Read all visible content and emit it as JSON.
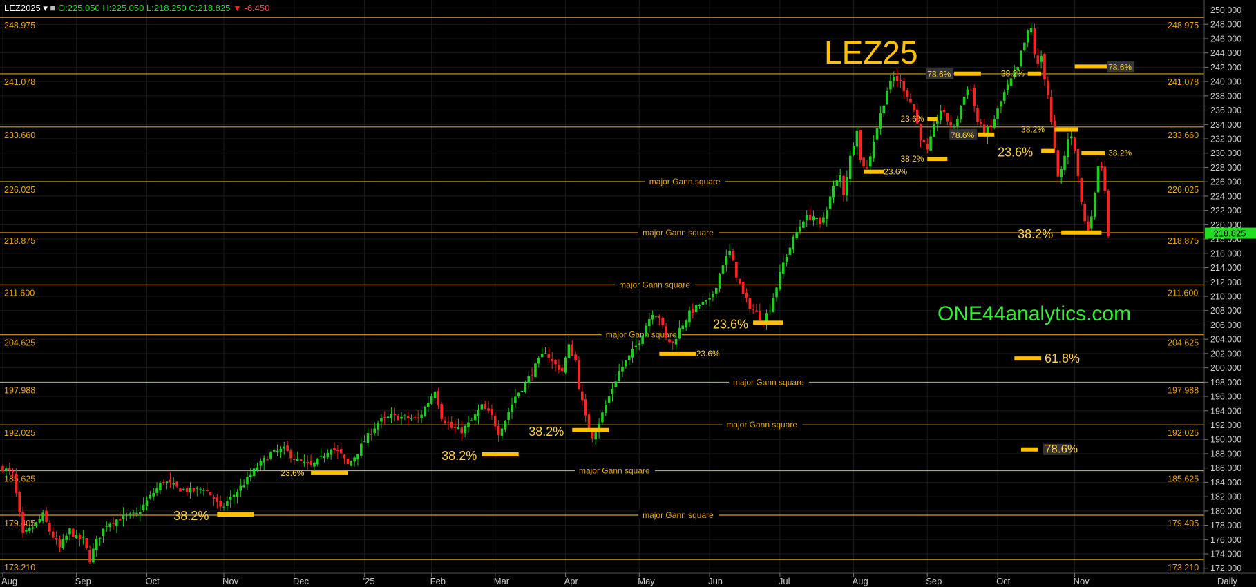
{
  "header": {
    "symbol": "LEZ2025",
    "ohlc": "O:225.050 H:225.050 L:218.250 C:218.825",
    "change": "-6.450",
    "up_color": "#22cc22",
    "down_color": "#ff2222"
  },
  "title": "LEZ25",
  "watermark": "ONE44analytics.com",
  "period_label": "Daily",
  "last_price": "218.825",
  "colors": {
    "background": "#000000",
    "gann": "#d4a017",
    "fib_bar": "#ffc000",
    "text_orange": "#e8a317",
    "text_yellow": "#ffd24a",
    "watermark": "#33ee33",
    "grid": "#1a1a1a",
    "axis_text": "#cccccc"
  },
  "chart_data": {
    "type": "candlestick",
    "ylim": [
      171.3,
      251.4
    ],
    "y_ticks": [
      "172.000",
      "174.000",
      "176.000",
      "178.000",
      "180.000",
      "182.000",
      "184.000",
      "186.000",
      "188.000",
      "190.000",
      "192.000",
      "194.000",
      "196.000",
      "198.000",
      "200.000",
      "202.000",
      "204.000",
      "206.000",
      "208.000",
      "210.000",
      "212.000",
      "214.000",
      "216.000",
      "218.000",
      "220.000",
      "222.000",
      "224.000",
      "226.000",
      "228.000",
      "230.000",
      "232.000",
      "234.000",
      "236.000",
      "238.000",
      "240.000",
      "242.000",
      "244.000",
      "246.000",
      "248.000",
      "250.000"
    ],
    "x_labels": [
      "Aug",
      "Sep",
      "Oct",
      "Nov",
      "Dec",
      "'25",
      "Feb",
      "Mar",
      "Apr",
      "May",
      "Jun",
      "Jul",
      "Aug",
      "Sep",
      "Oct",
      "Nov"
    ],
    "x_label_days": [
      0,
      22,
      43,
      66,
      87,
      108,
      128,
      147,
      168,
      190,
      211,
      232,
      254,
      276,
      297,
      320
    ],
    "x_range_days": [
      0,
      357
    ],
    "gann_levels": [
      {
        "value": 248.975,
        "text": "248.975",
        "label": ""
      },
      {
        "value": 241.078,
        "text": "241.078",
        "label": ""
      },
      {
        "value": 233.66,
        "text": "233.660",
        "label": ""
      },
      {
        "value": 226.025,
        "text": "226.025",
        "label": "major Gann square"
      },
      {
        "value": 218.875,
        "text": "218.875",
        "label": "major Gann square"
      },
      {
        "value": 211.6,
        "text": "211.600",
        "label": "major Gann square"
      },
      {
        "value": 204.625,
        "text": "204.625",
        "label": "major Gann square"
      },
      {
        "value": 197.988,
        "text": "197.988",
        "label": "major Gann square"
      },
      {
        "value": 192.025,
        "text": "192.025",
        "label": "major Gann square"
      },
      {
        "value": 185.625,
        "text": "185.625",
        "label": "major Gann square"
      },
      {
        "value": 179.405,
        "text": "179.405",
        "label": "major Gann square"
      },
      {
        "value": 173.21,
        "text": "173.210",
        "label": ""
      }
    ],
    "gann_label_days": [
      0,
      0,
      0,
      193,
      191,
      184,
      180,
      218,
      216,
      172,
      191,
      0
    ],
    "fib_marks": [
      {
        "d0": 64,
        "d1": 75,
        "y": 179.5,
        "label": "38.2%",
        "ld": 51,
        "lsize": "lg"
      },
      {
        "d0": 92,
        "d1": 103,
        "y": 185.3,
        "label": "23.6%",
        "ld": 83,
        "lsize": "sm"
      },
      {
        "d0": 143,
        "d1": 154,
        "y": 187.9,
        "label": "38.2%",
        "ld": 131,
        "lsize": "lg"
      },
      {
        "d0": 170,
        "d1": 181,
        "y": 191.3,
        "label": "38.2%",
        "ld": 157,
        "lsize": "lg"
      },
      {
        "d0": 196,
        "d1": 207,
        "y": 202.0,
        "label": "23.6%",
        "ld": 207,
        "lsize": "sm"
      },
      {
        "d0": 224,
        "d1": 233,
        "y": 206.3,
        "label": "23.6%",
        "ld": 212,
        "lsize": "lg"
      },
      {
        "d0": 257,
        "d1": 263,
        "y": 227.4,
        "label": "23.6%",
        "ld": 263,
        "lsize": "sm"
      },
      {
        "d0": 276,
        "d1": 282,
        "y": 229.2,
        "label": "38.2%",
        "ld": 268,
        "lsize": "sm"
      },
      {
        "d0": 276,
        "d1": 279,
        "y": 234.8,
        "label": "23.6%",
        "ld": 268,
        "lsize": "sm"
      },
      {
        "d0": 284,
        "d1": 292,
        "y": 241.1,
        "label": "78.6%",
        "ld": 276,
        "lsize": "box"
      },
      {
        "d0": 291,
        "d1": 296,
        "y": 232.6,
        "label": "78.6%",
        "ld": 283,
        "lsize": "box"
      },
      {
        "d0": 306,
        "d1": 310,
        "y": 241.1,
        "label": "38.2%",
        "ld": 298,
        "lsize": "sm"
      },
      {
        "d0": 310,
        "d1": 314,
        "y": 230.3,
        "label": "23.6%",
        "ld": 297,
        "lsize": "lg"
      },
      {
        "d0": 314,
        "d1": 321,
        "y": 233.3,
        "label": "38.2%",
        "ld": 304,
        "lsize": "sm"
      },
      {
        "d0": 322,
        "d1": 329,
        "y": 230.0,
        "label": "38.2%",
        "ld": 330,
        "lsize": "sm"
      },
      {
        "d0": 316,
        "d1": 328,
        "y": 218.9,
        "label": "38.2%",
        "ld": 303,
        "lsize": "lg"
      },
      {
        "d0": 320,
        "d1": 330,
        "y": 242.1,
        "label": "78.6%",
        "ld": 330,
        "lsize": "box"
      },
      {
        "d0": 302,
        "d1": 310,
        "y": 201.3,
        "label": "61.8%",
        "ld": 311,
        "lsize": "lg"
      },
      {
        "d0": 304,
        "d1": 309,
        "y": 188.6,
        "label": "78.6%",
        "ld": 311,
        "lsize": "box"
      }
    ],
    "path_points": [
      [
        0,
        186.0
      ],
      [
        3,
        185.2
      ],
      [
        6,
        176.5
      ],
      [
        10,
        178.2
      ],
      [
        12,
        179.4
      ],
      [
        14,
        177.2
      ],
      [
        17,
        174.8
      ],
      [
        20,
        177.3
      ],
      [
        22,
        176.2
      ],
      [
        24,
        176.0
      ],
      [
        26,
        173.2
      ],
      [
        28,
        175.8
      ],
      [
        31,
        178.2
      ],
      [
        35,
        179.0
      ],
      [
        40,
        179.5
      ],
      [
        44,
        182.0
      ],
      [
        48,
        184.2
      ],
      [
        52,
        183.2
      ],
      [
        56,
        182.8
      ],
      [
        60,
        183.2
      ],
      [
        63,
        181.8
      ],
      [
        65,
        180.2
      ],
      [
        68,
        181.8
      ],
      [
        72,
        183.8
      ],
      [
        76,
        186.2
      ],
      [
        80,
        188.0
      ],
      [
        84,
        188.6
      ],
      [
        88,
        187.0
      ],
      [
        92,
        186.2
      ],
      [
        95,
        187.3
      ],
      [
        98,
        189.0
      ],
      [
        101,
        187.8
      ],
      [
        103,
        186.4
      ],
      [
        105,
        187.6
      ],
      [
        108,
        189.8
      ],
      [
        112,
        192.4
      ],
      [
        116,
        193.2
      ],
      [
        120,
        193.0
      ],
      [
        124,
        192.8
      ],
      [
        127,
        195.2
      ],
      [
        129,
        197.0
      ],
      [
        131,
        193.2
      ],
      [
        134,
        191.6
      ],
      [
        137,
        191.2
      ],
      [
        140,
        192.6
      ],
      [
        143,
        194.6
      ],
      [
        146,
        193.2
      ],
      [
        148,
        191.0
      ],
      [
        150,
        192.8
      ],
      [
        153,
        196.0
      ],
      [
        156,
        197.8
      ],
      [
        159,
        200.2
      ],
      [
        162,
        202.4
      ],
      [
        164,
        200.8
      ],
      [
        167,
        199.6
      ],
      [
        169,
        203.0
      ],
      [
        171,
        201.0
      ],
      [
        172,
        197.4
      ],
      [
        174,
        193.0
      ],
      [
        176,
        190.5
      ],
      [
        178,
        192.4
      ],
      [
        181,
        196.0
      ],
      [
        184,
        199.5
      ],
      [
        187,
        201.5
      ],
      [
        190,
        203.8
      ],
      [
        192,
        206.0
      ],
      [
        194,
        207.8
      ],
      [
        196,
        207.2
      ],
      [
        198,
        204.0
      ],
      [
        200,
        203.4
      ],
      [
        202,
        205.4
      ],
      [
        205,
        207.6
      ],
      [
        208,
        208.8
      ],
      [
        211,
        209.3
      ],
      [
        213,
        211.6
      ],
      [
        215,
        214.6
      ],
      [
        217,
        216.2
      ],
      [
        219,
        213.0
      ],
      [
        221,
        210.2
      ],
      [
        223,
        208.6
      ],
      [
        225,
        207.6
      ],
      [
        227,
        206.6
      ],
      [
        229,
        208.4
      ],
      [
        231,
        211.4
      ],
      [
        233,
        214.6
      ],
      [
        236,
        218.0
      ],
      [
        239,
        220.8
      ],
      [
        242,
        221.2
      ],
      [
        244,
        219.8
      ],
      [
        246,
        222.4
      ],
      [
        248,
        225.2
      ],
      [
        250,
        226.8
      ],
      [
        251,
        224.4
      ],
      [
        253,
        229.4
      ],
      [
        255,
        233.6
      ],
      [
        256,
        229.0
      ],
      [
        258,
        227.8
      ],
      [
        260,
        231.8
      ],
      [
        262,
        235.4
      ],
      [
        264,
        238.8
      ],
      [
        266,
        240.6
      ],
      [
        268,
        239.8
      ],
      [
        270,
        238.2
      ],
      [
        272,
        236.0
      ],
      [
        274,
        232.2
      ],
      [
        276,
        230.2
      ],
      [
        278,
        233.6
      ],
      [
        280,
        236.0
      ],
      [
        282,
        234.6
      ],
      [
        284,
        233.4
      ],
      [
        286,
        236.6
      ],
      [
        288,
        239.2
      ],
      [
        289,
        238.8
      ],
      [
        291,
        234.4
      ],
      [
        293,
        232.8
      ],
      [
        295,
        233.6
      ],
      [
        297,
        236.0
      ],
      [
        299,
        238.4
      ],
      [
        301,
        240.2
      ],
      [
        303,
        241.8
      ],
      [
        304,
        244.0
      ],
      [
        306,
        246.8
      ],
      [
        307,
        247.4
      ],
      [
        308,
        244.0
      ],
      [
        309,
        242.2
      ],
      [
        310,
        243.6
      ],
      [
        311,
        240.6
      ],
      [
        312,
        238.2
      ],
      [
        313,
        234.2
      ],
      [
        314,
        230.4
      ],
      [
        315,
        226.4
      ],
      [
        316,
        227.6
      ],
      [
        317,
        229.6
      ],
      [
        318,
        231.8
      ],
      [
        319,
        232.6
      ],
      [
        320,
        230.6
      ],
      [
        321,
        226.6
      ],
      [
        322,
        223.2
      ],
      [
        323,
        220.4
      ],
      [
        324,
        219.4
      ],
      [
        325,
        221.6
      ],
      [
        326,
        224.0
      ],
      [
        327,
        228.6
      ],
      [
        328,
        228.2
      ],
      [
        329,
        225.0
      ],
      [
        330,
        218.8
      ]
    ]
  }
}
